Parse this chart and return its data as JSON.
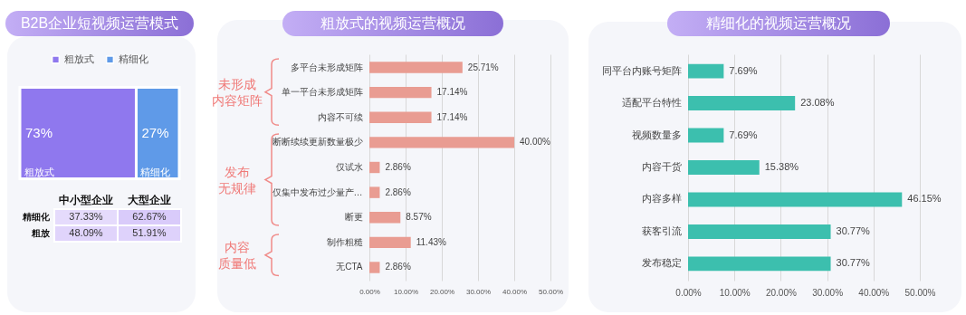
{
  "chart_data": [
    {
      "type": "bar",
      "title": "B2B企业短视频运营模式",
      "stacked": true,
      "orientation": "horizontal",
      "categories": [
        null
      ],
      "legend": "top",
      "tick_labels": false,
      "series": [
        {
          "name": "粗放式",
          "color": "#8f78ee",
          "values": [
            73
          ],
          "value_labels": [
            "73%"
          ]
        },
        {
          "name": "精细化",
          "color": "#5f9ae8",
          "values": [
            27
          ],
          "value_labels": [
            "27%"
          ]
        }
      ]
    },
    {
      "type": "heatmap",
      "categories": [
        "中小型企业",
        "大型企业"
      ],
      "y_categories": [
        "精细化",
        "粗放"
      ],
      "cells": [
        [
          37.33,
          62.67
        ],
        [
          48.09,
          51.91
        ]
      ],
      "cell_labels": [
        [
          "37.33%",
          "62.67%"
        ],
        [
          "48.09%",
          "51.91%"
        ]
      ]
    },
    {
      "type": "bar",
      "title": "粗放式的视频运营概况",
      "orientation": "horizontal",
      "color": "#e99c92",
      "grid": "x",
      "categories": [
        "多平台未形成矩阵",
        "单一平台未形成矩阵",
        "内容不可续",
        "断断续续更新数量极少",
        "仅试水",
        "仅集中发布过少量产…",
        "断更",
        "制作粗糙",
        "无CTA"
      ],
      "values": [
        25.71,
        17.14,
        17.14,
        40.0,
        2.86,
        2.86,
        8.57,
        11.43,
        2.86
      ],
      "value_labels": [
        "25.71%",
        "17.14%",
        "17.14%",
        "40.00%",
        "2.86%",
        "2.86%",
        "8.57%",
        "11.43%",
        "2.86%"
      ],
      "xlim": [
        0,
        50
      ],
      "xticks": [
        {
          "value": 0,
          "label": "0.00%"
        },
        {
          "value": 10,
          "label": "10.00%"
        },
        {
          "value": 20,
          "label": "20.00%"
        },
        {
          "value": 30,
          "label": "30.00%"
        },
        {
          "value": 40,
          "label": "40.00%"
        },
        {
          "value": 50,
          "label": "50.00%"
        }
      ],
      "annotations": [
        "未形成内容矩阵",
        "发布无规律",
        "内容质量低"
      ]
    },
    {
      "type": "bar",
      "title": "精细化的视频运营概况",
      "orientation": "horizontal",
      "color": "#3cbfae",
      "grid": "x",
      "categories": [
        "同平台内账号矩阵",
        "适配平台特性",
        "视频数量多",
        "内容干货",
        "内容多样",
        "获客引流",
        "发布稳定"
      ],
      "values": [
        7.69,
        23.08,
        7.69,
        15.38,
        46.15,
        30.77,
        30.77
      ],
      "value_labels": [
        "7.69%",
        "23.08%",
        "7.69%",
        "15.38%",
        "46.15%",
        "30.77%",
        "30.77%"
      ],
      "xlim": [
        0,
        50
      ],
      "xticks": [
        {
          "value": 0,
          "label": "0.00%"
        },
        {
          "value": 10,
          "label": "10.00%"
        },
        {
          "value": 20,
          "label": "20.00%"
        },
        {
          "value": 30,
          "label": "30.00%"
        },
        {
          "value": 40,
          "label": "40.00%"
        },
        {
          "value": 50,
          "label": "50.00%"
        }
      ]
    }
  ]
}
